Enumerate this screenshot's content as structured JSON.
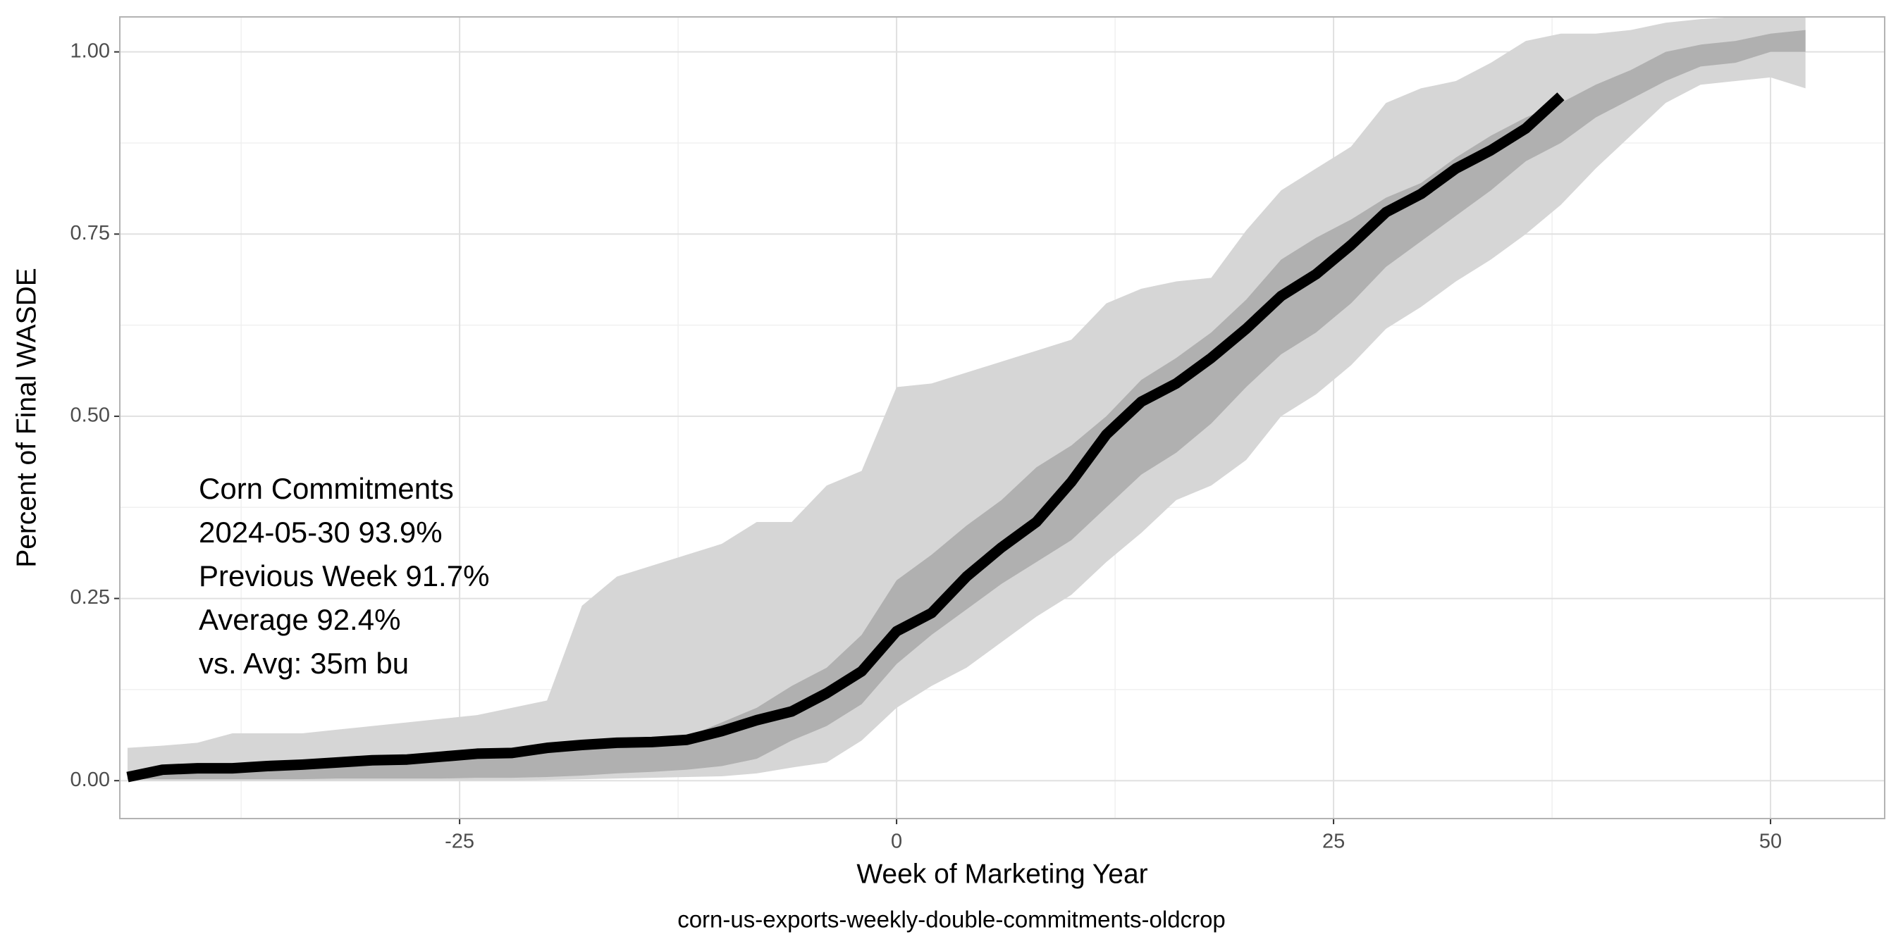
{
  "chart_data": {
    "type": "line",
    "x_label": "Week of Marketing Year",
    "y_label": "Percent of Final WASDE",
    "caption": "corn-us-exports-weekly-double-commitments-oldcrop",
    "annotations": [
      "Corn Commitments",
      "2024-05-30 93.9%",
      "Previous Week 91.7%",
      "Average 92.4%",
      "vs. Avg: 35m bu"
    ],
    "x": [
      -44,
      -42,
      -40,
      -38,
      -36,
      -34,
      -32,
      -30,
      -28,
      -26,
      -24,
      -22,
      -20,
      -18,
      -16,
      -14,
      -12,
      -10,
      -8,
      -6,
      -4,
      -2,
      0,
      2,
      4,
      6,
      8,
      10,
      12,
      14,
      16,
      18,
      20,
      22,
      24,
      26,
      28,
      30,
      32,
      34,
      36,
      38,
      40,
      42,
      44,
      46,
      48,
      50,
      52
    ],
    "bands": [
      {
        "color": "#d6d6d6",
        "lower": [
          0,
          0,
          0,
          0,
          0,
          0,
          0,
          0,
          0,
          0,
          0,
          0,
          0.001,
          0.002,
          0.003,
          0.004,
          0.005,
          0.006,
          0.01,
          0.018,
          0.025,
          0.055,
          0.1,
          0.13,
          0.155,
          0.19,
          0.225,
          0.255,
          0.3,
          0.34,
          0.385,
          0.405,
          0.44,
          0.5,
          0.53,
          0.57,
          0.62,
          0.65,
          0.685,
          0.715,
          0.75,
          0.79,
          0.84,
          0.885,
          0.93,
          0.955,
          0.96,
          0.965,
          0.95
        ],
        "upper": [
          0.045,
          0.048,
          0.052,
          0.065,
          0.065,
          0.065,
          0.07,
          0.075,
          0.08,
          0.085,
          0.09,
          0.1,
          0.11,
          0.24,
          0.28,
          0.295,
          0.31,
          0.325,
          0.355,
          0.355,
          0.405,
          0.425,
          0.54,
          0.545,
          0.56,
          0.575,
          0.59,
          0.605,
          0.655,
          0.675,
          0.685,
          0.69,
          0.755,
          0.81,
          0.84,
          0.87,
          0.93,
          0.95,
          0.96,
          0.985,
          1.015,
          1.025,
          1.025,
          1.03,
          1.04,
          1.045,
          1.048,
          1.048,
          1.048
        ]
      },
      {
        "color": "#b0b0b0",
        "lower": [
          0.002,
          0.002,
          0.002,
          0.002,
          0.002,
          0.002,
          0.003,
          0.003,
          0.003,
          0.003,
          0.004,
          0.004,
          0.005,
          0.007,
          0.01,
          0.012,
          0.015,
          0.02,
          0.03,
          0.055,
          0.075,
          0.105,
          0.16,
          0.2,
          0.235,
          0.27,
          0.3,
          0.33,
          0.375,
          0.42,
          0.45,
          0.49,
          0.54,
          0.585,
          0.615,
          0.655,
          0.705,
          0.74,
          0.775,
          0.81,
          0.85,
          0.875,
          0.91,
          0.935,
          0.96,
          0.98,
          0.985,
          1.0,
          1.0
        ],
        "upper": [
          0.008,
          0.015,
          0.017,
          0.018,
          0.02,
          0.022,
          0.025,
          0.028,
          0.03,
          0.034,
          0.038,
          0.04,
          0.047,
          0.05,
          0.053,
          0.055,
          0.06,
          0.08,
          0.1,
          0.13,
          0.155,
          0.2,
          0.275,
          0.31,
          0.35,
          0.385,
          0.43,
          0.46,
          0.5,
          0.55,
          0.58,
          0.615,
          0.66,
          0.715,
          0.745,
          0.77,
          0.8,
          0.82,
          0.855,
          0.885,
          0.91,
          0.93,
          0.955,
          0.975,
          1.0,
          1.01,
          1.015,
          1.025,
          1.03
        ]
      }
    ],
    "series": [
      {
        "color": "#000000",
        "values": [
          0.005,
          0.015,
          0.017,
          0.017,
          0.02,
          0.022,
          0.025,
          0.028,
          0.029,
          0.033,
          0.037,
          0.038,
          0.045,
          0.049,
          0.052,
          0.053,
          0.056,
          0.068,
          0.083,
          0.095,
          0.12,
          0.15,
          0.205,
          0.23,
          0.28,
          0.32,
          0.355,
          0.41,
          0.475,
          0.52,
          0.545,
          0.58,
          0.62,
          0.665,
          0.695,
          0.735,
          0.78,
          0.805,
          0.84,
          0.865,
          0.895,
          0.939,
          null,
          null,
          null,
          null,
          null,
          null,
          null
        ]
      }
    ],
    "xlim": [
      -44.44,
      56.53
    ],
    "ylim": [
      -0.052,
      1.048
    ],
    "xticks": [
      -25,
      0,
      25,
      50
    ],
    "yticks": [
      {
        "value": 0,
        "label": "0.00"
      },
      {
        "value": 0.25,
        "label": "0.25"
      },
      {
        "value": 0.5,
        "label": "0.50"
      },
      {
        "value": 0.75,
        "label": "0.75"
      },
      {
        "value": 1,
        "label": "1.00"
      }
    ],
    "grid": true
  }
}
